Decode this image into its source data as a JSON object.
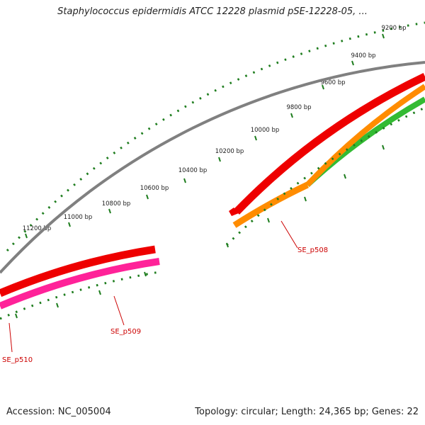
{
  "title": "Staphylococcus epidermidis ATCC 12228 plasmid pSE-12228-05, ...",
  "footer": {
    "accession": "Accession: NC_005004",
    "summary": "Topology: circular; Length: 24,365 bp; Genes: 22"
  },
  "colors": {
    "backbone": "#808080",
    "tick_green": "#1e7d1e",
    "label_red": "#cc0000",
    "gene_red": "#ee0000",
    "gene_pink": "#ff2299",
    "gene_orange": "#ff8c00",
    "gene_green": "#33bb33"
  },
  "axis": {
    "tick_labels": [
      "9200 bp",
      "9400 bp",
      "9600 bp",
      "9800 bp",
      "10000 bp",
      "10200 bp",
      "10400 bp",
      "10600 bp",
      "10800 bp",
      "11000 bp",
      "11200 bp"
    ]
  },
  "genes": [
    {
      "name": "SE_p508"
    },
    {
      "name": "SE_p509"
    },
    {
      "name": "SE_p510"
    }
  ]
}
